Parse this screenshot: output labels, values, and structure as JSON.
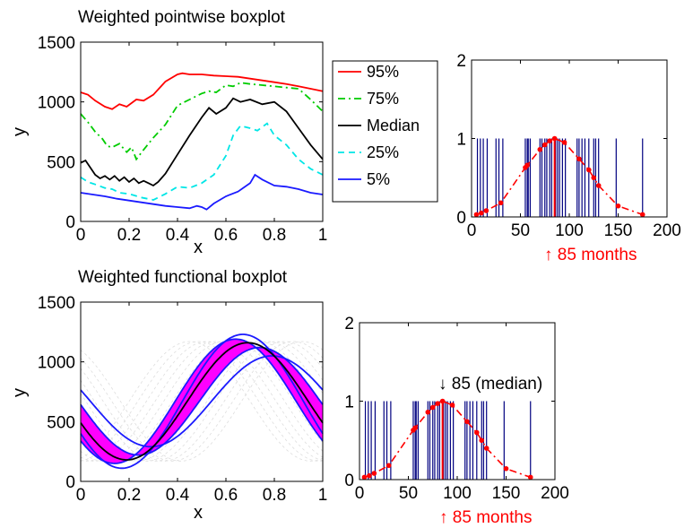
{
  "chart_data": [
    {
      "id": "pointwise",
      "type": "line",
      "title": "Weighted pointwise boxplot",
      "xlabel": "x",
      "ylabel": "y",
      "xlim": [
        0,
        1
      ],
      "ylim": [
        0,
        1500
      ],
      "xticks": [
        "0",
        "0.2",
        "0.4",
        "0.6",
        "0.8",
        "1"
      ],
      "yticks": [
        "0",
        "500",
        "1000",
        "1500"
      ],
      "legend_position": "right (outside)",
      "grid": false,
      "series": [
        {
          "name": "95%",
          "color": "#ff0000",
          "dash": "solid",
          "x": [
            0,
            0.03,
            0.06,
            0.1,
            0.13,
            0.16,
            0.19,
            0.23,
            0.26,
            0.3,
            0.35,
            0.4,
            0.42,
            0.45,
            0.5,
            0.55,
            0.6,
            0.65,
            0.7,
            0.75,
            0.8,
            0.85,
            0.9,
            0.95,
            1.0
          ],
          "y": [
            1080,
            1060,
            1010,
            960,
            940,
            980,
            960,
            1020,
            1010,
            1060,
            1170,
            1230,
            1240,
            1230,
            1230,
            1220,
            1215,
            1210,
            1195,
            1180,
            1165,
            1150,
            1130,
            1110,
            1090
          ]
        },
        {
          "name": "75%",
          "color": "#00cc00",
          "dash": "dashdot",
          "x": [
            0,
            0.03,
            0.06,
            0.09,
            0.11,
            0.13,
            0.16,
            0.19,
            0.21,
            0.23,
            0.26,
            0.3,
            0.35,
            0.4,
            0.45,
            0.5,
            0.53,
            0.56,
            0.6,
            0.63,
            0.66,
            0.7,
            0.75,
            0.8,
            0.85,
            0.9,
            0.95,
            1.0
          ],
          "y": [
            900,
            830,
            750,
            690,
            630,
            620,
            650,
            580,
            620,
            520,
            600,
            700,
            810,
            970,
            1020,
            1070,
            1090,
            1080,
            1140,
            1130,
            1160,
            1150,
            1140,
            1130,
            1120,
            1110,
            1020,
            920
          ]
        },
        {
          "name": "Median",
          "color": "#000000",
          "dash": "solid",
          "x": [
            0,
            0.02,
            0.04,
            0.06,
            0.08,
            0.1,
            0.12,
            0.14,
            0.16,
            0.18,
            0.2,
            0.22,
            0.24,
            0.26,
            0.28,
            0.3,
            0.32,
            0.35,
            0.4,
            0.45,
            0.5,
            0.53,
            0.56,
            0.6,
            0.63,
            0.66,
            0.7,
            0.75,
            0.8,
            0.85,
            0.9,
            0.95,
            1.0
          ],
          "y": [
            490,
            510,
            450,
            390,
            360,
            380,
            350,
            380,
            340,
            370,
            330,
            360,
            320,
            340,
            320,
            300,
            330,
            400,
            560,
            720,
            870,
            950,
            900,
            950,
            1030,
            1000,
            1020,
            980,
            1000,
            920,
            780,
            640,
            520
          ]
        },
        {
          "name": "25%",
          "color": "#00e6e6",
          "dash": "dashed",
          "x": [
            0,
            0.03,
            0.06,
            0.1,
            0.13,
            0.16,
            0.2,
            0.25,
            0.3,
            0.35,
            0.4,
            0.45,
            0.5,
            0.55,
            0.6,
            0.63,
            0.66,
            0.7,
            0.73,
            0.77,
            0.8,
            0.85,
            0.9,
            0.95,
            1.0
          ],
          "y": [
            370,
            330,
            310,
            280,
            270,
            240,
            230,
            200,
            180,
            230,
            290,
            280,
            320,
            390,
            550,
            720,
            800,
            780,
            760,
            820,
            720,
            640,
            520,
            440,
            390
          ]
        },
        {
          "name": "5%",
          "color": "#1a1aff",
          "dash": "solid",
          "x": [
            0,
            0.05,
            0.1,
            0.15,
            0.2,
            0.25,
            0.3,
            0.35,
            0.4,
            0.45,
            0.48,
            0.5,
            0.52,
            0.55,
            0.6,
            0.65,
            0.7,
            0.72,
            0.75,
            0.8,
            0.85,
            0.9,
            0.95,
            1.0
          ],
          "y": [
            240,
            225,
            210,
            190,
            175,
            160,
            145,
            130,
            120,
            110,
            130,
            120,
            100,
            150,
            210,
            250,
            320,
            390,
            350,
            300,
            290,
            270,
            240,
            225
          ]
        }
      ]
    },
    {
      "id": "weights-top",
      "type": "scatter",
      "xlim": [
        0,
        200
      ],
      "ylim": [
        0,
        2
      ],
      "xticks": [
        "0",
        "50",
        "100",
        "150",
        "200"
      ],
      "yticks": [
        "0",
        "1",
        "2"
      ],
      "grid": false,
      "stems_x": [
        6,
        9,
        12,
        16,
        25,
        28,
        32,
        55,
        57,
        58,
        60,
        70,
        72,
        75,
        77,
        80,
        82,
        86,
        88,
        90,
        93,
        96,
        108,
        110,
        113,
        116,
        120,
        125,
        127,
        130,
        148,
        175
      ],
      "stem_color": "#000080",
      "highlight_x": 85,
      "highlight_color": "#ff0000",
      "curve_x": [
        5,
        10,
        15,
        30,
        55,
        57,
        70,
        75,
        80,
        85,
        95,
        110,
        120,
        125,
        130,
        150,
        175
      ],
      "curve_y": [
        0.03,
        0.05,
        0.08,
        0.18,
        0.63,
        0.66,
        0.86,
        0.92,
        0.97,
        1.0,
        0.95,
        0.74,
        0.6,
        0.5,
        0.4,
        0.14,
        0.03
      ],
      "annotation": "↑ 85 months"
    },
    {
      "id": "functional",
      "type": "area",
      "title": "Weighted functional boxplot",
      "xlabel": "x",
      "ylabel": "y",
      "xlim": [
        0,
        1
      ],
      "ylim": [
        0,
        1500
      ],
      "xticks": [
        "0",
        "0.2",
        "0.4",
        "0.6",
        "0.8",
        "1"
      ],
      "yticks": [
        "0",
        "500",
        "1000",
        "1500"
      ],
      "grid": false,
      "band_color": "#ff00ff",
      "envelope_color": "#1a1aff",
      "median_color": "#000000",
      "median_phase": 0.44,
      "midline": 670,
      "band_amplitude_low": 450,
      "band_amplitude_high": 520,
      "whisker_low_phase": 0.5,
      "whisker_low_amplitude": 380,
      "whisker_high_phase": 0.5,
      "whisker_high_amplitude": 560,
      "background_curves": 14
    },
    {
      "id": "weights-bottom",
      "type": "scatter",
      "xlim": [
        0,
        200
      ],
      "ylim": [
        0,
        2
      ],
      "xticks": [
        "0",
        "50",
        "100",
        "150",
        "200"
      ],
      "yticks": [
        "0",
        "1",
        "2"
      ],
      "grid": false,
      "stems_x": [
        6,
        9,
        12,
        16,
        25,
        28,
        32,
        55,
        57,
        58,
        60,
        70,
        72,
        75,
        77,
        80,
        82,
        86,
        88,
        90,
        93,
        96,
        108,
        110,
        113,
        116,
        120,
        125,
        127,
        130,
        148,
        175
      ],
      "stem_color": "#000080",
      "highlight_x": 85,
      "highlight_color": "#ff0000",
      "curve_x": [
        5,
        10,
        15,
        30,
        55,
        57,
        70,
        75,
        80,
        85,
        95,
        110,
        120,
        125,
        130,
        150,
        175
      ],
      "curve_y": [
        0.03,
        0.05,
        0.08,
        0.18,
        0.63,
        0.66,
        0.86,
        0.92,
        0.97,
        1.0,
        0.95,
        0.74,
        0.6,
        0.5,
        0.4,
        0.14,
        0.03
      ],
      "annotation": "↑ 85 months",
      "annotation_top": "↓ 85 (median)"
    }
  ]
}
